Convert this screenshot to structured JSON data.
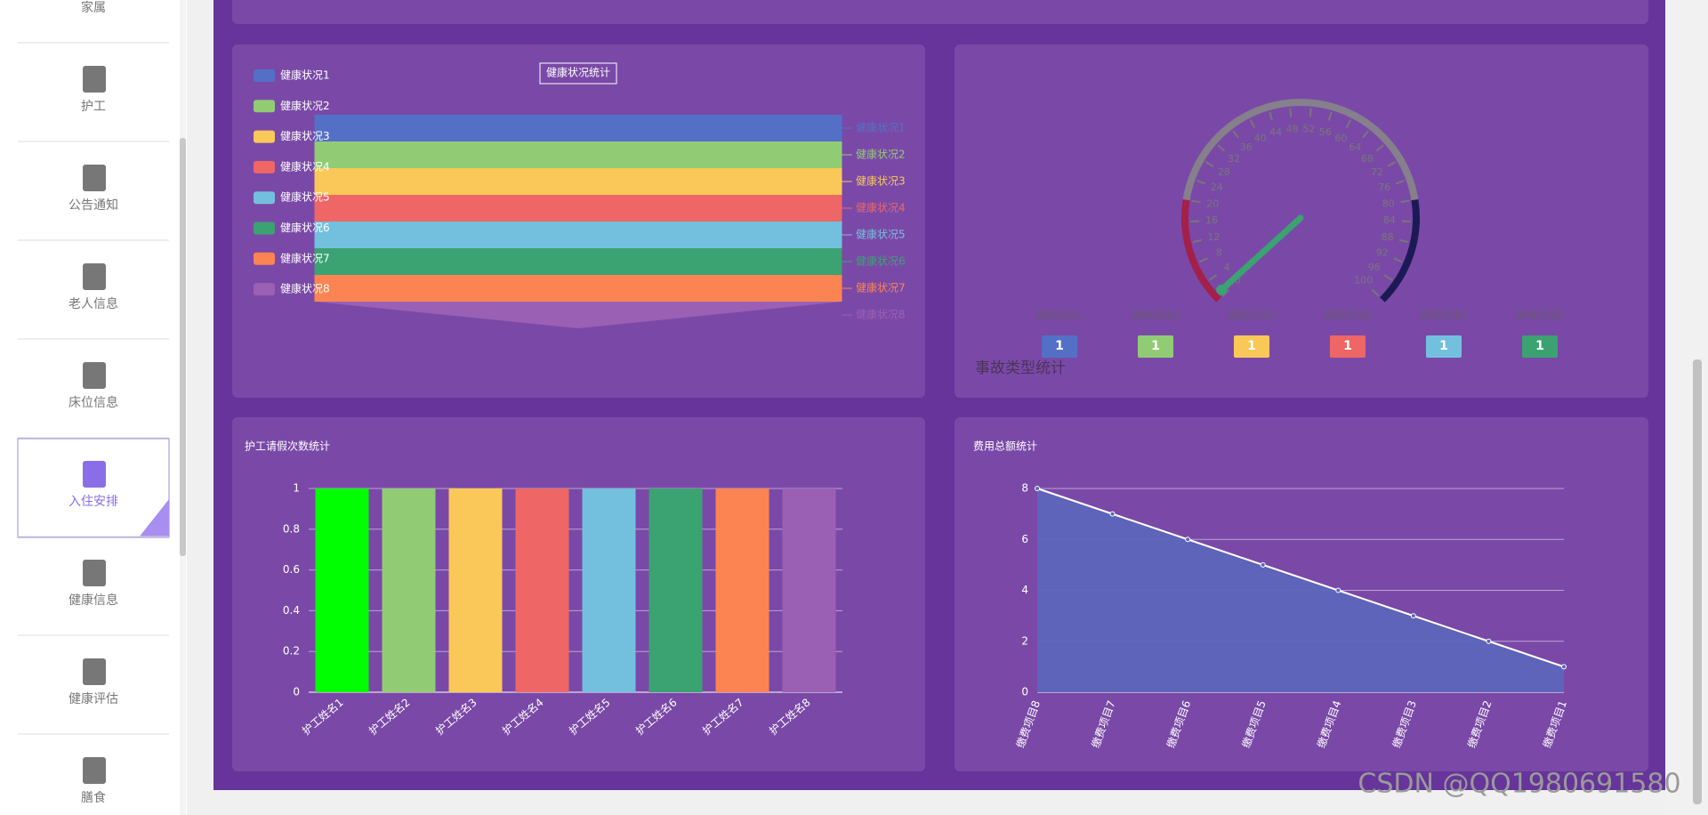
{
  "sidebar": {
    "items": [
      "家属",
      "护工",
      "公告通知",
      "老人信息",
      "床位信息",
      "入住安排",
      "健康信息",
      "健康评估",
      "膳食"
    ],
    "active": 5
  },
  "chart_data": [
    {
      "type": "funnel",
      "title": "健康状况统计",
      "categories": [
        "健康状况1",
        "健康状况2",
        "健康状况3",
        "健康状况4",
        "健康状况5",
        "健康状况6",
        "健康状况7",
        "健康状况8"
      ],
      "values": [
        1,
        1,
        1,
        1,
        1,
        1,
        1,
        1
      ],
      "colors": [
        "#5470c6",
        "#91cc75",
        "#fac858",
        "#ee6666",
        "#73c0de",
        "#3ba272",
        "#fc8452",
        "#9a60b4"
      ]
    },
    {
      "type": "gauge",
      "title": "事故类型统计",
      "categories": [
        "事故类型1",
        "事故类型2",
        "事故类型3",
        "事故类型4",
        "事故类型5",
        "事故类型6"
      ],
      "values": [
        1,
        1,
        1,
        1,
        1,
        1
      ],
      "colors": [
        "#5470c6",
        "#91cc75",
        "#fac858",
        "#ee6666",
        "#73c0de",
        "#3ba272"
      ],
      "lim": [
        0,
        100
      ],
      "ticks": [
        0,
        4,
        8,
        12,
        16,
        20,
        24,
        28,
        32,
        36,
        40,
        44,
        48,
        52,
        56,
        60,
        64,
        68,
        72,
        76,
        80,
        84,
        88,
        92,
        96,
        100
      ],
      "axis_colors": [
        [
          0.2,
          "#a3204a"
        ],
        [
          0.8,
          "#85808c"
        ],
        [
          1,
          "#1c1a55"
        ]
      ],
      "pointer_color": "#3ba272"
    },
    {
      "type": "bar",
      "title": "护工请假次数统计",
      "categories": [
        "护工姓名1",
        "护工姓名2",
        "护工姓名3",
        "护工姓名4",
        "护工姓名5",
        "护工姓名6",
        "护工姓名7",
        "护工姓名8"
      ],
      "values": [
        1,
        1,
        1,
        1,
        1,
        1,
        1,
        1
      ],
      "colors": [
        "#00ff00",
        "#91cc75",
        "#fac858",
        "#ee6666",
        "#73c0de",
        "#3ba272",
        "#fc8452",
        "#9a60b4"
      ],
      "ylim": [
        0,
        1
      ],
      "yticks": [
        0,
        0.2,
        0.4,
        0.6,
        0.8,
        1
      ],
      "grid": true
    },
    {
      "type": "line",
      "title": "费用总额统计",
      "categories": [
        "缴费项目8",
        "缴费项目7",
        "缴费项目6",
        "缴费项目5",
        "缴费项目4",
        "缴费项目3",
        "缴费项目2",
        "缴费项目1"
      ],
      "values": [
        8,
        7,
        6,
        5,
        4,
        3,
        2,
        1
      ],
      "color": "#5d66bb",
      "ylim": [
        0,
        8
      ],
      "yticks": [
        0,
        2,
        4,
        6,
        8
      ],
      "grid": true,
      "area": true
    }
  ],
  "watermark": "CSDN @QQ1980691580"
}
